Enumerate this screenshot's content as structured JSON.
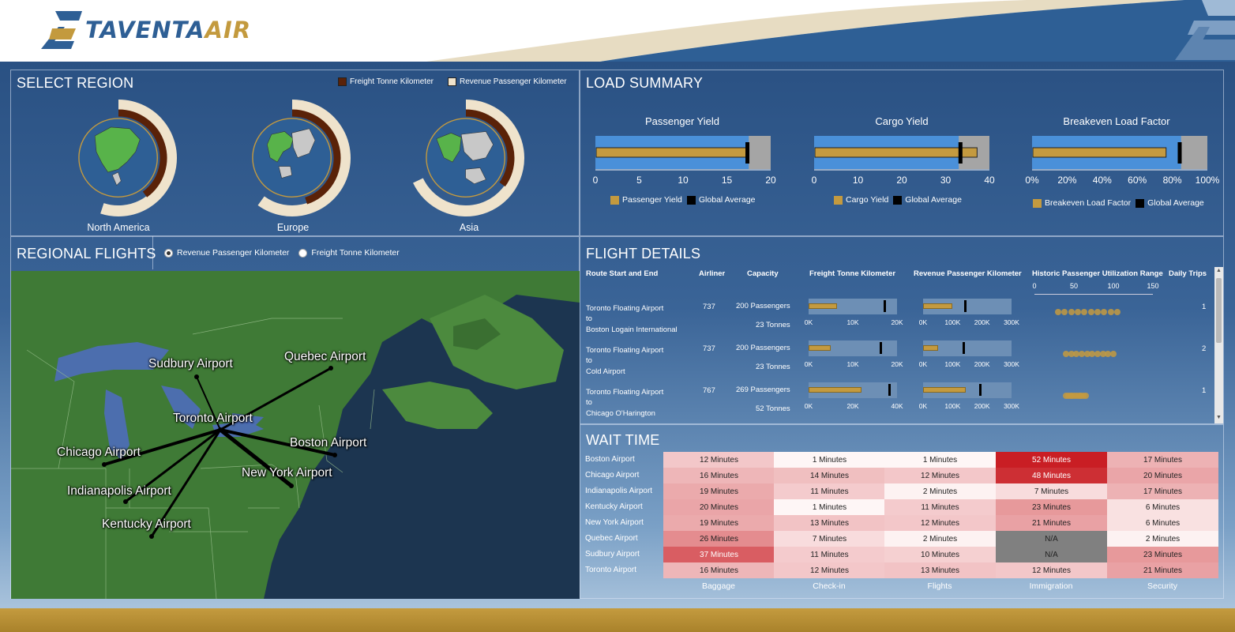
{
  "brand": {
    "name_a": "TAVENTA",
    "name_b": "AIR"
  },
  "select_region": {
    "title": "SELECT REGION",
    "legend": [
      {
        "label": "Freight Tonne Kilometer",
        "color": "#5a2208"
      },
      {
        "label": "Revenue Passenger Kilometer",
        "color": "#efe3cc"
      }
    ],
    "regions": [
      {
        "label": "North America",
        "freight": 0.4,
        "revenue": 0.55
      },
      {
        "label": "Europe",
        "freight": 0.45,
        "revenue": 0.6
      },
      {
        "label": "Asia",
        "freight": 0.35,
        "revenue": 0.68
      }
    ]
  },
  "load_summary": {
    "title": "LOAD SUMMARY",
    "charts": [
      {
        "title": "Passenger Yield",
        "ticks": [
          "0",
          "5",
          "10",
          "15",
          "20"
        ],
        "max": 20,
        "band": 17.5,
        "value": 17.3,
        "average": 17.3,
        "legend_value": "Passenger Yield",
        "legend_avg": "Global Average"
      },
      {
        "title": "Cargo Yield",
        "ticks": [
          "0",
          "10",
          "20",
          "30",
          "40"
        ],
        "max": 40,
        "band": 33,
        "value": 37,
        "average": 33.3,
        "legend_value": "Cargo Yield",
        "legend_avg": "Global Average"
      },
      {
        "title": "Breakeven Load Factor",
        "ticks": [
          "0%",
          "20%",
          "40%",
          "60%",
          "80%",
          "100%"
        ],
        "max": 100,
        "band": 85,
        "value": 76,
        "average": 84,
        "legend_value": "Breakeven Load Factor",
        "legend_avg": "Global Average"
      }
    ],
    "colors": {
      "band": "#4a90d9",
      "bg": "#a5a5a5",
      "value": "#c49a3f",
      "average": "#000000"
    }
  },
  "regional_flights": {
    "title": "REGIONAL FLIGHTS",
    "options": [
      {
        "label": "Revenue Passenger Kilometer",
        "selected": true
      },
      {
        "label": "Freight Tonne Kilometer",
        "selected": false
      }
    ],
    "cities": [
      "Sudbury Airport",
      "Quebec Airport",
      "Toronto Airport",
      "Boston Airport",
      "Chicago Airport",
      "New York Airport",
      "Indianapolis Airport",
      "Kentucky Airport"
    ]
  },
  "flight_details": {
    "title": "FLIGHT DETAILS",
    "headers": [
      "Route Start and End",
      "Airliner",
      "Capacity",
      "Freight Tonne Kilometer",
      "Revenue Passenger Kilometer",
      "Historic Passenger Utilization Range",
      "Daily Trips"
    ],
    "util_ticks": [
      "0",
      "50",
      "100",
      "150"
    ],
    "rows": [
      {
        "from": "Toronto Floating Airport",
        "to_word": "to",
        "dest": "Boston Logain International",
        "airliner": "737",
        "passengers": "200 Passengers",
        "tonnes": "23 Tonnes",
        "ftk_ticks": [
          "0K",
          "10K",
          "20K"
        ],
        "ftk_max": 20,
        "ftk_value": 6.5,
        "ftk_mark": 17,
        "rpk_ticks": [
          "0K",
          "100K",
          "200K",
          "300K"
        ],
        "rpk_max": 300,
        "rpk_value": 100,
        "rpk_mark": 140,
        "util_min": 30,
        "util_max": 105,
        "trips": "1"
      },
      {
        "from": "Toronto Floating Airport",
        "to_word": "to",
        "dest": "Cold Airport",
        "airliner": "737",
        "passengers": "200 Passengers",
        "tonnes": "23 Tonnes",
        "ftk_ticks": [
          "0K",
          "10K",
          "20K"
        ],
        "ftk_max": 20,
        "ftk_value": 5,
        "ftk_mark": 16,
        "rpk_ticks": [
          "0K",
          "100K",
          "200K",
          "300K"
        ],
        "rpk_max": 300,
        "rpk_value": 50,
        "rpk_mark": 135,
        "util_min": 40,
        "util_max": 100,
        "trips": "2"
      },
      {
        "from": "Toronto Floating Airport",
        "to_word": "to",
        "dest": "Chicago O'Harington",
        "airliner": "767",
        "passengers": "269 Passengers",
        "tonnes": "52 Tonnes",
        "ftk_ticks": [
          "0K",
          "20K",
          "40K"
        ],
        "ftk_max": 40,
        "ftk_value": 24,
        "ftk_mark": 36,
        "rpk_ticks": [
          "0K",
          "100K",
          "200K",
          "300K"
        ],
        "rpk_max": 300,
        "rpk_value": 145,
        "rpk_mark": 190,
        "util_min": 40,
        "util_max": 65,
        "trips": "1"
      }
    ]
  },
  "wait_time": {
    "title": "WAIT TIME",
    "columns": [
      "Baggage",
      "Check-in",
      "Flights",
      "Immigration",
      "Security"
    ],
    "rows": [
      {
        "airport": "Boston Airport",
        "cells": [
          "12 Minutes",
          "1 Minutes",
          "1 Minutes",
          "52 Minutes",
          "17 Minutes"
        ]
      },
      {
        "airport": "Chicago Airport",
        "cells": [
          "16 Minutes",
          "14 Minutes",
          "12 Minutes",
          "48 Minutes",
          "20 Minutes"
        ]
      },
      {
        "airport": "Indianapolis Airport",
        "cells": [
          "19 Minutes",
          "11 Minutes",
          "2 Minutes",
          "7 Minutes",
          "17 Minutes"
        ]
      },
      {
        "airport": "Kentucky Airport",
        "cells": [
          "20 Minutes",
          "1 Minutes",
          "11 Minutes",
          "23 Minutes",
          "6 Minutes"
        ]
      },
      {
        "airport": "New York Airport",
        "cells": [
          "19 Minutes",
          "13 Minutes",
          "12 Minutes",
          "21 Minutes",
          "6 Minutes"
        ]
      },
      {
        "airport": "Quebec Airport",
        "cells": [
          "26 Minutes",
          "7 Minutes",
          "2 Minutes",
          "N/A",
          "2 Minutes"
        ]
      },
      {
        "airport": "Sudbury Airport",
        "cells": [
          "37 Minutes",
          "11 Minutes",
          "10 Minutes",
          "N/A",
          "23 Minutes"
        ]
      },
      {
        "airport": "Toronto Airport",
        "cells": [
          "16 Minutes",
          "12 Minutes",
          "13 Minutes",
          "12 Minutes",
          "21 Minutes"
        ]
      }
    ]
  }
}
